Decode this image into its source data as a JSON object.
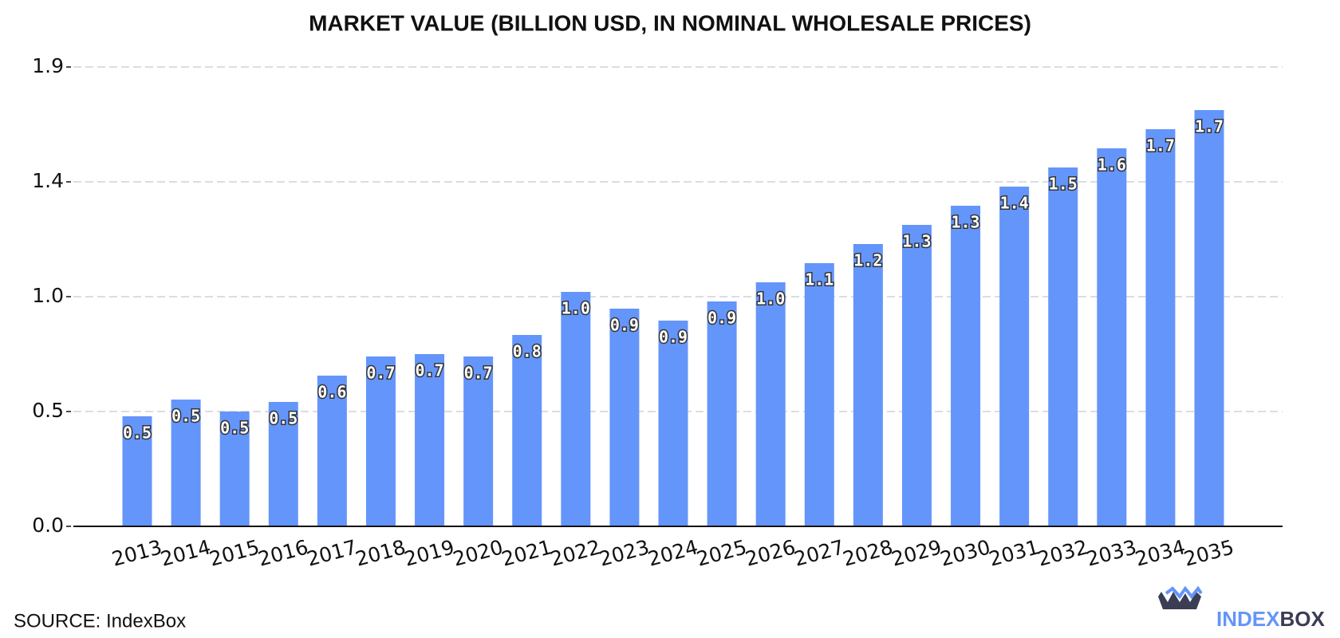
{
  "chart_data": {
    "type": "bar",
    "title": "MARKET VALUE (BILLION USD, IN NOMINAL WHOLESALE PRICES)",
    "categories": [
      "2013",
      "2014",
      "2015",
      "2016",
      "2017",
      "2018",
      "2019",
      "2020",
      "2021",
      "2022",
      "2023",
      "2024",
      "2025",
      "2026",
      "2027",
      "2028",
      "2029",
      "2030",
      "2031",
      "2032",
      "2033",
      "2034",
      "2035"
    ],
    "values": [
      0.46,
      0.53,
      0.48,
      0.52,
      0.63,
      0.71,
      0.72,
      0.71,
      0.8,
      0.98,
      0.91,
      0.86,
      0.94,
      1.02,
      1.1,
      1.18,
      1.26,
      1.34,
      1.42,
      1.5,
      1.58,
      1.66,
      1.74
    ],
    "value_labels": [
      "0.5",
      "0.5",
      "0.5",
      "0.5",
      "0.6",
      "0.7",
      "0.7",
      "0.7",
      "0.8",
      "1.0",
      "0.9",
      "0.9",
      "0.9",
      "1.0",
      "1.1",
      "1.2",
      "1.3",
      "1.3",
      "1.4",
      "1.5",
      "1.6",
      "1.7",
      "1.7"
    ],
    "color": "#6495fa",
    "ylim": [
      0,
      1.95
    ],
    "yticks": [
      {
        "value": 0,
        "label": "0.0"
      },
      {
        "value": 0.48,
        "label": "0.5"
      },
      {
        "value": 0.96,
        "label": "1.0"
      },
      {
        "value": 1.44,
        "label": "1.4"
      },
      {
        "value": 1.92,
        "label": "1.9"
      }
    ],
    "grid": true
  },
  "footer": {
    "source": "SOURCE: IndexBox",
    "logo_left": "INDEX",
    "logo_right": "BOX"
  }
}
